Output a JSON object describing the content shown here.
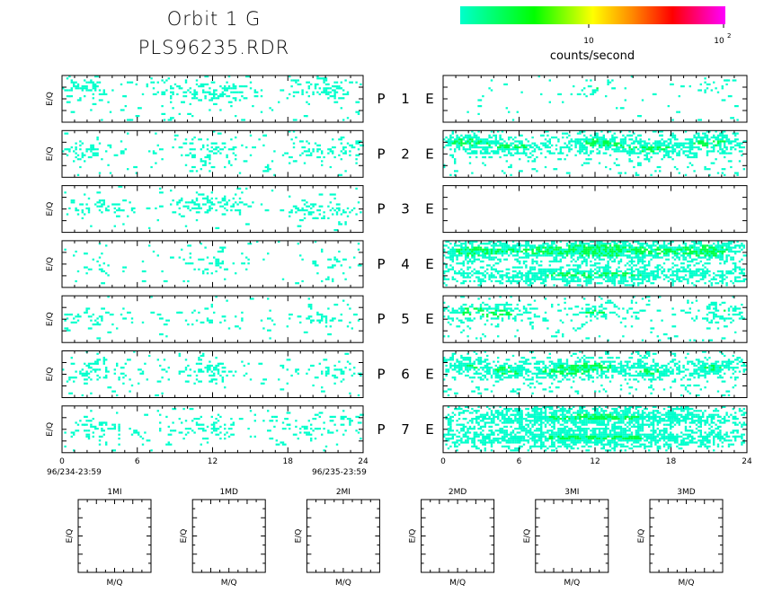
{
  "header": {
    "title_line1": "Orbit 1 G",
    "title_line2": "PLS96235.RDR"
  },
  "colorbar": {
    "label": "counts/second",
    "tick_10": "10",
    "tick_100_base": "10",
    "tick_100_exp": "2",
    "gradient": [
      "#00ffcc",
      "#00ff00",
      "#ffff00",
      "#ff8800",
      "#ff0000",
      "#ff00ff"
    ]
  },
  "colors": {
    "low": "#00ffcc",
    "mid": "#00ff44"
  },
  "panels": {
    "ylabel": "E/Q",
    "rows": [
      {
        "p": "P",
        "n": "1",
        "e": "E"
      },
      {
        "p": "P",
        "n": "2",
        "e": "E"
      },
      {
        "p": "P",
        "n": "3",
        "e": "E"
      },
      {
        "p": "P",
        "n": "4",
        "e": "E"
      },
      {
        "p": "P",
        "n": "5",
        "e": "E"
      },
      {
        "p": "P",
        "n": "6",
        "e": "E"
      },
      {
        "p": "P",
        "n": "7",
        "e": "E"
      }
    ],
    "xticks": [
      "0",
      "6",
      "12",
      "18",
      "24"
    ],
    "start_date": "96/234-23:59",
    "end_date": "96/235-23:59"
  },
  "bottom_panels": {
    "titles": [
      "1MI",
      "1MD",
      "2MI",
      "2MD",
      "3MI",
      "3MD"
    ],
    "xlabel": "M/Q",
    "ylabel": "E/Q"
  },
  "chart_data": [
    {
      "type": "heatmap",
      "title": "Orbit 1 G PLS96235.RDR",
      "xlabel": "",
      "ylabel": "E/Q",
      "xlim": [
        0,
        24
      ],
      "xticks": [
        0,
        6,
        12,
        18,
        24
      ],
      "colorscale": "counts/second",
      "series": [
        {
          "name": "P 1",
          "panel": "left",
          "clusters": [
            [
              1.5,
              0.25,
              1.5
            ],
            [
              11.8,
              0.35,
              3.2
            ],
            [
              21.2,
              0.3,
              2.2
            ]
          ],
          "density": 0.26
        },
        {
          "name": "P 2",
          "panel": "left",
          "clusters": [
            [
              2.0,
              0.45,
              2.0
            ],
            [
              11.5,
              0.45,
              2.5
            ],
            [
              21.0,
              0.45,
              2.5
            ]
          ],
          "density": 0.2
        },
        {
          "name": "P 3",
          "panel": "left",
          "clusters": [
            [
              3.0,
              0.5,
              2.5
            ],
            [
              11.8,
              0.4,
              2.5
            ],
            [
              21.0,
              0.5,
              2.5
            ]
          ],
          "density": 0.2
        },
        {
          "name": "P 4",
          "panel": "left",
          "clusters": [
            [
              2.0,
              0.5,
              1.5
            ],
            [
              12.0,
              0.5,
              2.0
            ],
            [
              22.0,
              0.5,
              1.5
            ]
          ],
          "density": 0.14
        },
        {
          "name": "P 5",
          "panel": "left",
          "clusters": [
            [
              2.0,
              0.5,
              3.0
            ],
            [
              12.0,
              0.5,
              3.0
            ],
            [
              21.0,
              0.5,
              3.0
            ]
          ],
          "density": 0.11
        },
        {
          "name": "P 6",
          "panel": "left",
          "clusters": [
            [
              2.5,
              0.45,
              2.0
            ],
            [
              11.8,
              0.45,
              2.5
            ],
            [
              21.5,
              0.45,
              2.0
            ]
          ],
          "density": 0.2
        },
        {
          "name": "P 7",
          "panel": "left",
          "clusters": [
            [
              2.5,
              0.5,
              3.0
            ],
            [
              11.5,
              0.5,
              3.0
            ],
            [
              21.0,
              0.5,
              3.0
            ]
          ],
          "density": 0.18
        },
        {
          "name": "1 E",
          "panel": "right",
          "clusters": [
            [
              12.0,
              0.25,
              1.5
            ],
            [
              21.5,
              0.25,
              1.5
            ]
          ],
          "density": 0.1
        },
        {
          "name": "2 E",
          "panel": "right",
          "clusters": [
            [
              1.5,
              0.25,
              2.0
            ],
            [
              5.5,
              0.35,
              3.0
            ],
            [
              12.0,
              0.25,
              2.5
            ],
            [
              21.5,
              0.25,
              2.5
            ],
            [
              16.5,
              0.4,
              3.5
            ]
          ],
          "density": 0.45
        },
        {
          "name": "3 E",
          "panel": "right",
          "clusters": [],
          "density": 0.0
        },
        {
          "name": "4 E",
          "panel": "right",
          "clusters": [
            [
              2.0,
              0.22,
              2.0
            ],
            [
              12.0,
              0.22,
              2.5
            ],
            [
              21.5,
              0.22,
              2.0
            ],
            [
              7.0,
              0.22,
              5.0
            ],
            [
              17.0,
              0.22,
              5.0
            ],
            [
              12.0,
              0.75,
              12.0
            ]
          ],
          "density": 0.5
        },
        {
          "name": "5 E",
          "panel": "right",
          "clusters": [
            [
              2.0,
              0.35,
              2.0
            ],
            [
              12.0,
              0.35,
              2.0
            ],
            [
              22.0,
              0.35,
              2.0
            ],
            [
              5.0,
              0.4,
              2.0
            ]
          ],
          "density": 0.32
        },
        {
          "name": "6 E",
          "panel": "right",
          "clusters": [
            [
              2.0,
              0.35,
              1.8
            ],
            [
              5.0,
              0.45,
              1.5
            ],
            [
              12.0,
              0.35,
              2.5
            ],
            [
              21.5,
              0.35,
              2.0
            ],
            [
              9.0,
              0.45,
              2.5
            ],
            [
              16.5,
              0.45,
              2.5
            ]
          ],
          "density": 0.48
        },
        {
          "name": "7 E",
          "panel": "right",
          "clusters": [
            [
              12.0,
              0.25,
              12.0
            ],
            [
              12.0,
              0.7,
              12.0
            ]
          ],
          "density": 0.62
        }
      ]
    }
  ]
}
